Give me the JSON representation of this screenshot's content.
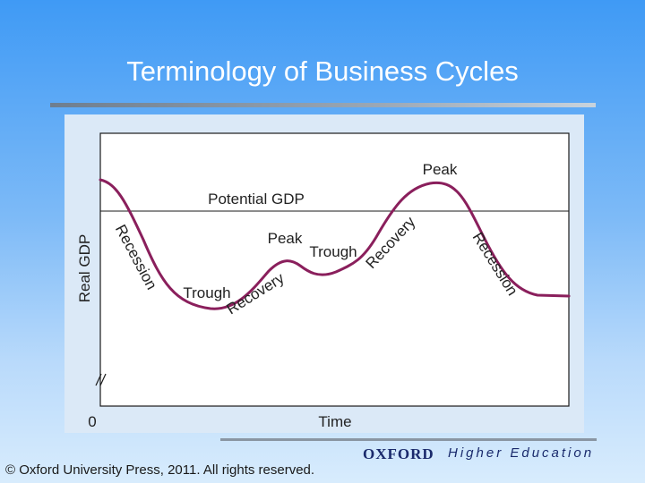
{
  "slide": {
    "title": "Terminology of Business Cycles",
    "copyright": "© Oxford University Press, 2011. All rights reserved.",
    "publisher": "OXFORD",
    "publisher_tagline": "Higher Education"
  },
  "diagram": {
    "y_axis_label": "Real GDP",
    "x_axis_label": "Time",
    "origin_label": "0",
    "potential_gdp_label": "Potential GDP",
    "labels": {
      "recession_1": "Recession",
      "trough_1": "Trough",
      "recovery_1": "Recovery",
      "peak_1": "Peak",
      "trough_2": "Trough",
      "recovery_2": "Recovery",
      "peak_2": "Peak",
      "recession_2": "Recession"
    },
    "colors": {
      "curve": "#8a1f5c",
      "frame": "#1a1a1a",
      "plot_background": "#ffffff",
      "text": "#222222"
    }
  }
}
